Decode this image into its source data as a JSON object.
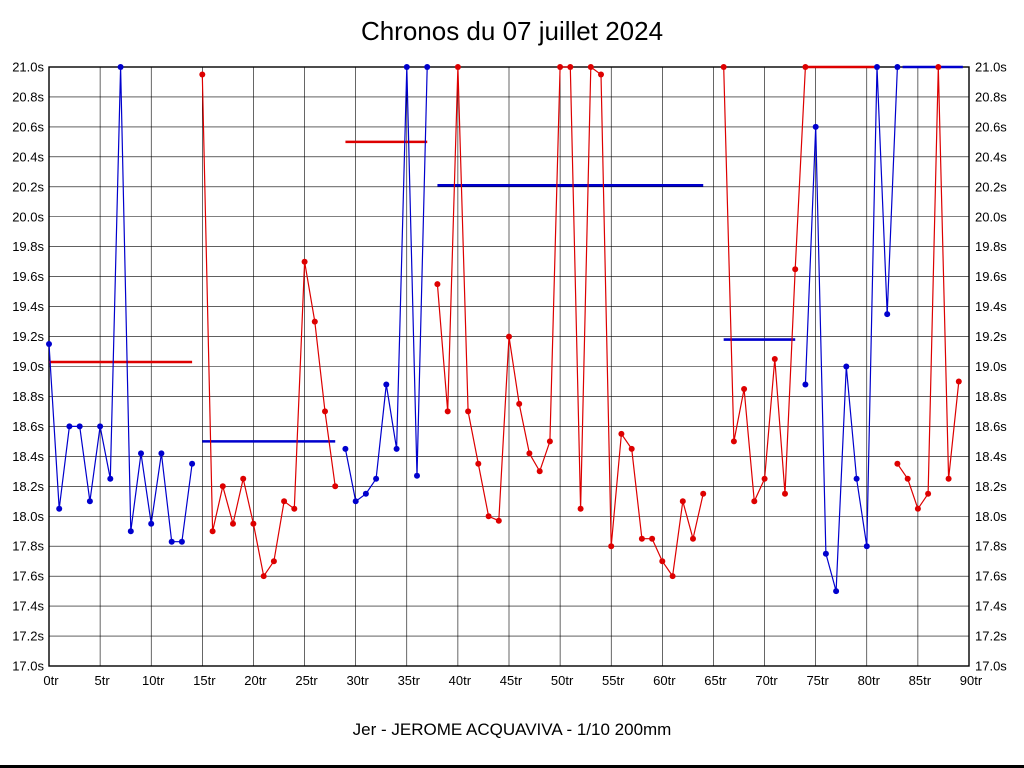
{
  "chart_data": {
    "type": "line",
    "title": "Chronos du 07 juillet 2024",
    "caption": "Jer - JEROME ACQUAVIVA - 1/10 200mm",
    "x_unit": "tr",
    "y_unit": "s",
    "xlim": [
      0,
      90
    ],
    "xtick_step": 5,
    "ylim": [
      17.0,
      21.0
    ],
    "ytick_step": 0.2,
    "grid": true,
    "legend": "none",
    "colors": {
      "red": "#dd0000",
      "blue": "#0000cd"
    },
    "xtick_labels": [
      "0tr",
      "5tr",
      "10tr",
      "15tr",
      "20tr",
      "25tr",
      "30tr",
      "35tr",
      "40tr",
      "45tr",
      "50tr",
      "55tr",
      "60tr",
      "65tr",
      "70tr",
      "75tr",
      "80tr",
      "85tr",
      "90tr"
    ],
    "ytick_labels": [
      "17.0s",
      "17.2s",
      "17.4s",
      "17.6s",
      "17.8s",
      "18.0s",
      "18.2s",
      "18.4s",
      "18.6s",
      "18.8s",
      "19.0s",
      "19.2s",
      "19.4s",
      "19.6s",
      "19.8s",
      "20.0s",
      "20.2s",
      "20.4s",
      "20.6s",
      "20.8s",
      "21.0s"
    ],
    "segments": [
      {
        "name": "stint-1",
        "color": "blue",
        "start_lap": 0,
        "values": [
          19.15,
          18.05,
          18.6,
          18.6,
          18.1,
          18.6,
          18.25,
          21.0,
          17.9,
          18.42,
          17.95,
          18.42,
          17.83,
          17.83,
          18.35
        ]
      },
      {
        "name": "stint-2",
        "color": "red",
        "start_lap": 15,
        "values": [
          20.95,
          17.9,
          18.2,
          17.95,
          18.25,
          17.95,
          17.6,
          17.7,
          18.1,
          18.05,
          19.7,
          19.3,
          18.7,
          18.2
        ]
      },
      {
        "name": "stint-3",
        "color": "blue",
        "start_lap": 29,
        "values": [
          18.45,
          18.1,
          18.15,
          18.25,
          18.88,
          18.45,
          21.0,
          18.27,
          21.0
        ]
      },
      {
        "name": "stint-4",
        "color": "red",
        "start_lap": 38,
        "values": [
          19.55,
          18.7,
          21.0,
          18.7,
          18.35,
          18.0,
          17.97,
          19.2,
          18.75,
          18.42,
          18.3,
          18.5,
          21.0,
          21.0,
          18.05,
          21.0,
          20.95,
          17.8,
          18.55,
          18.45,
          17.85,
          17.85,
          17.7,
          17.6,
          18.1,
          17.85,
          18.15
        ]
      },
      {
        "name": "stint-5",
        "color": "red",
        "start_lap": 66,
        "values": [
          21.0,
          18.5,
          18.85,
          18.1,
          18.25,
          19.05,
          18.15,
          19.65,
          21.0
        ]
      },
      {
        "name": "stint-6",
        "color": "blue",
        "start_lap": 74,
        "values": [
          18.88,
          20.6,
          17.75,
          17.5,
          19.0,
          18.25,
          17.8,
          21.0,
          19.35,
          21.0
        ]
      },
      {
        "name": "stint-7",
        "color": "red",
        "start_lap": 83,
        "values": [
          18.35,
          18.25,
          18.05,
          18.15,
          21.0,
          18.25,
          18.9
        ]
      }
    ],
    "average_lines": [
      {
        "color": "red",
        "from": 0,
        "to": 14,
        "value": 19.03
      },
      {
        "color": "blue",
        "from": 15,
        "to": 28,
        "value": 18.5
      },
      {
        "color": "red",
        "from": 29,
        "to": 37,
        "value": 20.5
      },
      {
        "color": "blue",
        "from": 38,
        "to": 64,
        "value": 20.21
      },
      {
        "color": "blue",
        "from": 66,
        "to": 73,
        "value": 19.18
      },
      {
        "color": "red",
        "from": 74,
        "to": 81,
        "value": 21.0
      },
      {
        "color": "blue",
        "from": 83.5,
        "to": 89.4,
        "value": 21.0
      }
    ]
  }
}
